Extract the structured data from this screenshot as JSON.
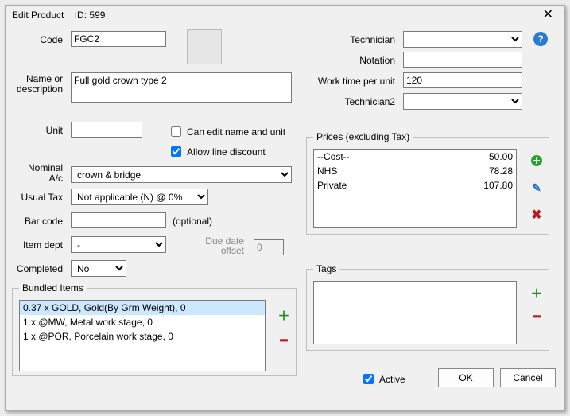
{
  "window": {
    "title_prefix": "Edit Product",
    "id_label": "ID:",
    "id_value": "599"
  },
  "labels": {
    "code": "Code",
    "name_desc": "Name or description",
    "unit": "Unit",
    "can_edit": "Can edit name and unit",
    "allow_discount": "Allow line discount",
    "nominal": "Nominal A/c",
    "usual_tax": "Usual Tax",
    "bar_code": "Bar code",
    "optional": "(optional)",
    "item_dept": "Item dept",
    "due_date": "Due date offset",
    "completed": "Completed",
    "technician": "Technician",
    "notation": "Notation",
    "work_time": "Work time per unit",
    "technician2": "Technician2",
    "prices_legend": "Prices (excluding Tax)",
    "tags_legend": "Tags",
    "bundled_legend": "Bundled Items",
    "active": "Active",
    "ok": "OK",
    "cancel": "Cancel"
  },
  "values": {
    "code": "FGC2",
    "name_desc": "Full gold crown type 2",
    "unit": "",
    "can_edit_checked": false,
    "allow_discount_checked": true,
    "nominal": "crown & bridge",
    "usual_tax": "Not applicable (N) @ 0%",
    "bar_code": "",
    "item_dept": "-",
    "due_date_offset": "0",
    "completed": "No",
    "technician": "",
    "notation": "",
    "work_time": "120",
    "technician2": "",
    "active_checked": true
  },
  "prices": [
    {
      "name": "--Cost--",
      "value": "50.00"
    },
    {
      "name": "NHS",
      "value": "78.28"
    },
    {
      "name": "Private",
      "value": "107.80"
    }
  ],
  "bundled": [
    "0.37 x GOLD, Gold(By Grm Weight), 0",
    "1 x @MW, Metal work stage, 0",
    "1 x @POR, Porcelain work stage, 0"
  ],
  "tags": []
}
